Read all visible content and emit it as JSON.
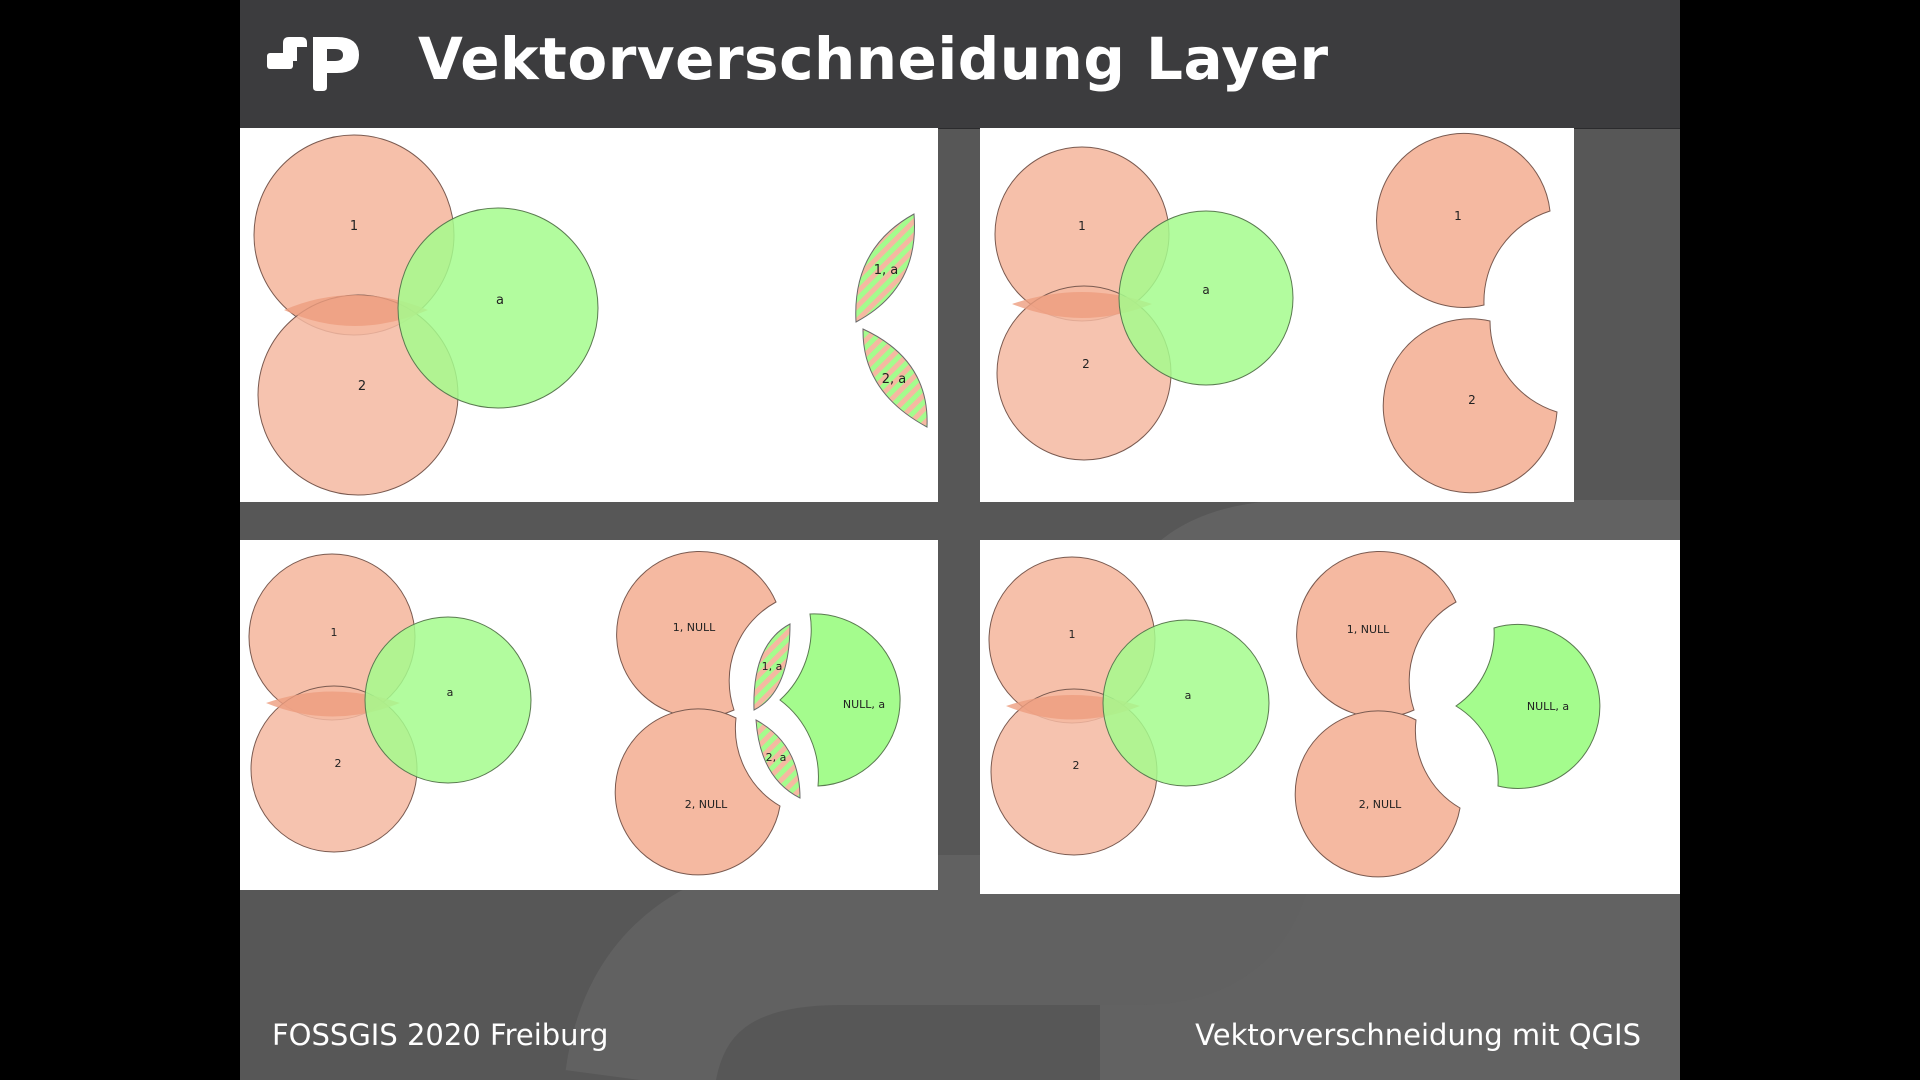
{
  "slide": {
    "title": "Vektorverschneidung Layer",
    "footer_left": "FOSSGIS 2020 Freiburg",
    "footer_right": "Vektorverschneidung mit QGIS"
  },
  "colors": {
    "header": "#3c3c3e",
    "background": "#575757",
    "salmon": "#f5b9a1",
    "green": "#a4fc8d",
    "overlap": "#ee9d80"
  },
  "panels": [
    {
      "name": "intersection",
      "input_labels": [
        "1",
        "a",
        "2"
      ],
      "output_labels": [
        "1, a",
        "2, a"
      ]
    },
    {
      "name": "difference",
      "input_labels": [
        "1",
        "a",
        "2"
      ],
      "output_labels": [
        "1",
        "2"
      ]
    },
    {
      "name": "union",
      "input_labels": [
        "1",
        "a",
        "2"
      ],
      "output_labels": [
        "1, NULL",
        "1, a",
        "NULL, a",
        "2, a",
        "2, NULL"
      ]
    },
    {
      "name": "symmetric-difference",
      "input_labels": [
        "1",
        "a",
        "2"
      ],
      "output_labels": [
        "1, NULL",
        "NULL, a",
        "2, NULL"
      ]
    }
  ]
}
